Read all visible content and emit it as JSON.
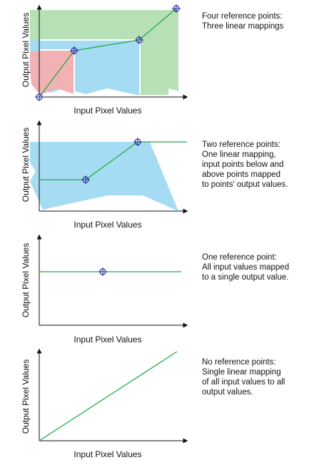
{
  "panels": [
    {
      "xlabel": "Input Pixel Values",
      "ylabel": "Output Pixel Values",
      "caption": [
        "Four reference points:",
        "Three linear mappings"
      ],
      "reference_points": 4
    },
    {
      "xlabel": "Input Pixel Values",
      "ylabel": "Output Pixel Values",
      "caption": [
        "Two reference points:",
        "One linear mapping,",
        "input points below and",
        "above points mapped",
        "to points' output values."
      ],
      "reference_points": 2
    },
    {
      "xlabel": "Input Pixel Values",
      "ylabel": "Output Pixel Values",
      "caption": [
        "One reference point:",
        "All input values mapped",
        "to a single output value."
      ],
      "reference_points": 1
    },
    {
      "xlabel": "Input Pixel Values",
      "ylabel": "Output Pixel Values",
      "caption": [
        "No reference points:",
        "Single linear mapping",
        "of all input values to all",
        "output values."
      ],
      "reference_points": 0
    }
  ],
  "colors": {
    "axis": "#111111",
    "curve": "#22aa44",
    "marker": "#2a2aa0",
    "fill_pink": "#f2b1b3",
    "fill_blue": "#a6dcf3",
    "fill_green": "#b8e0b6"
  }
}
